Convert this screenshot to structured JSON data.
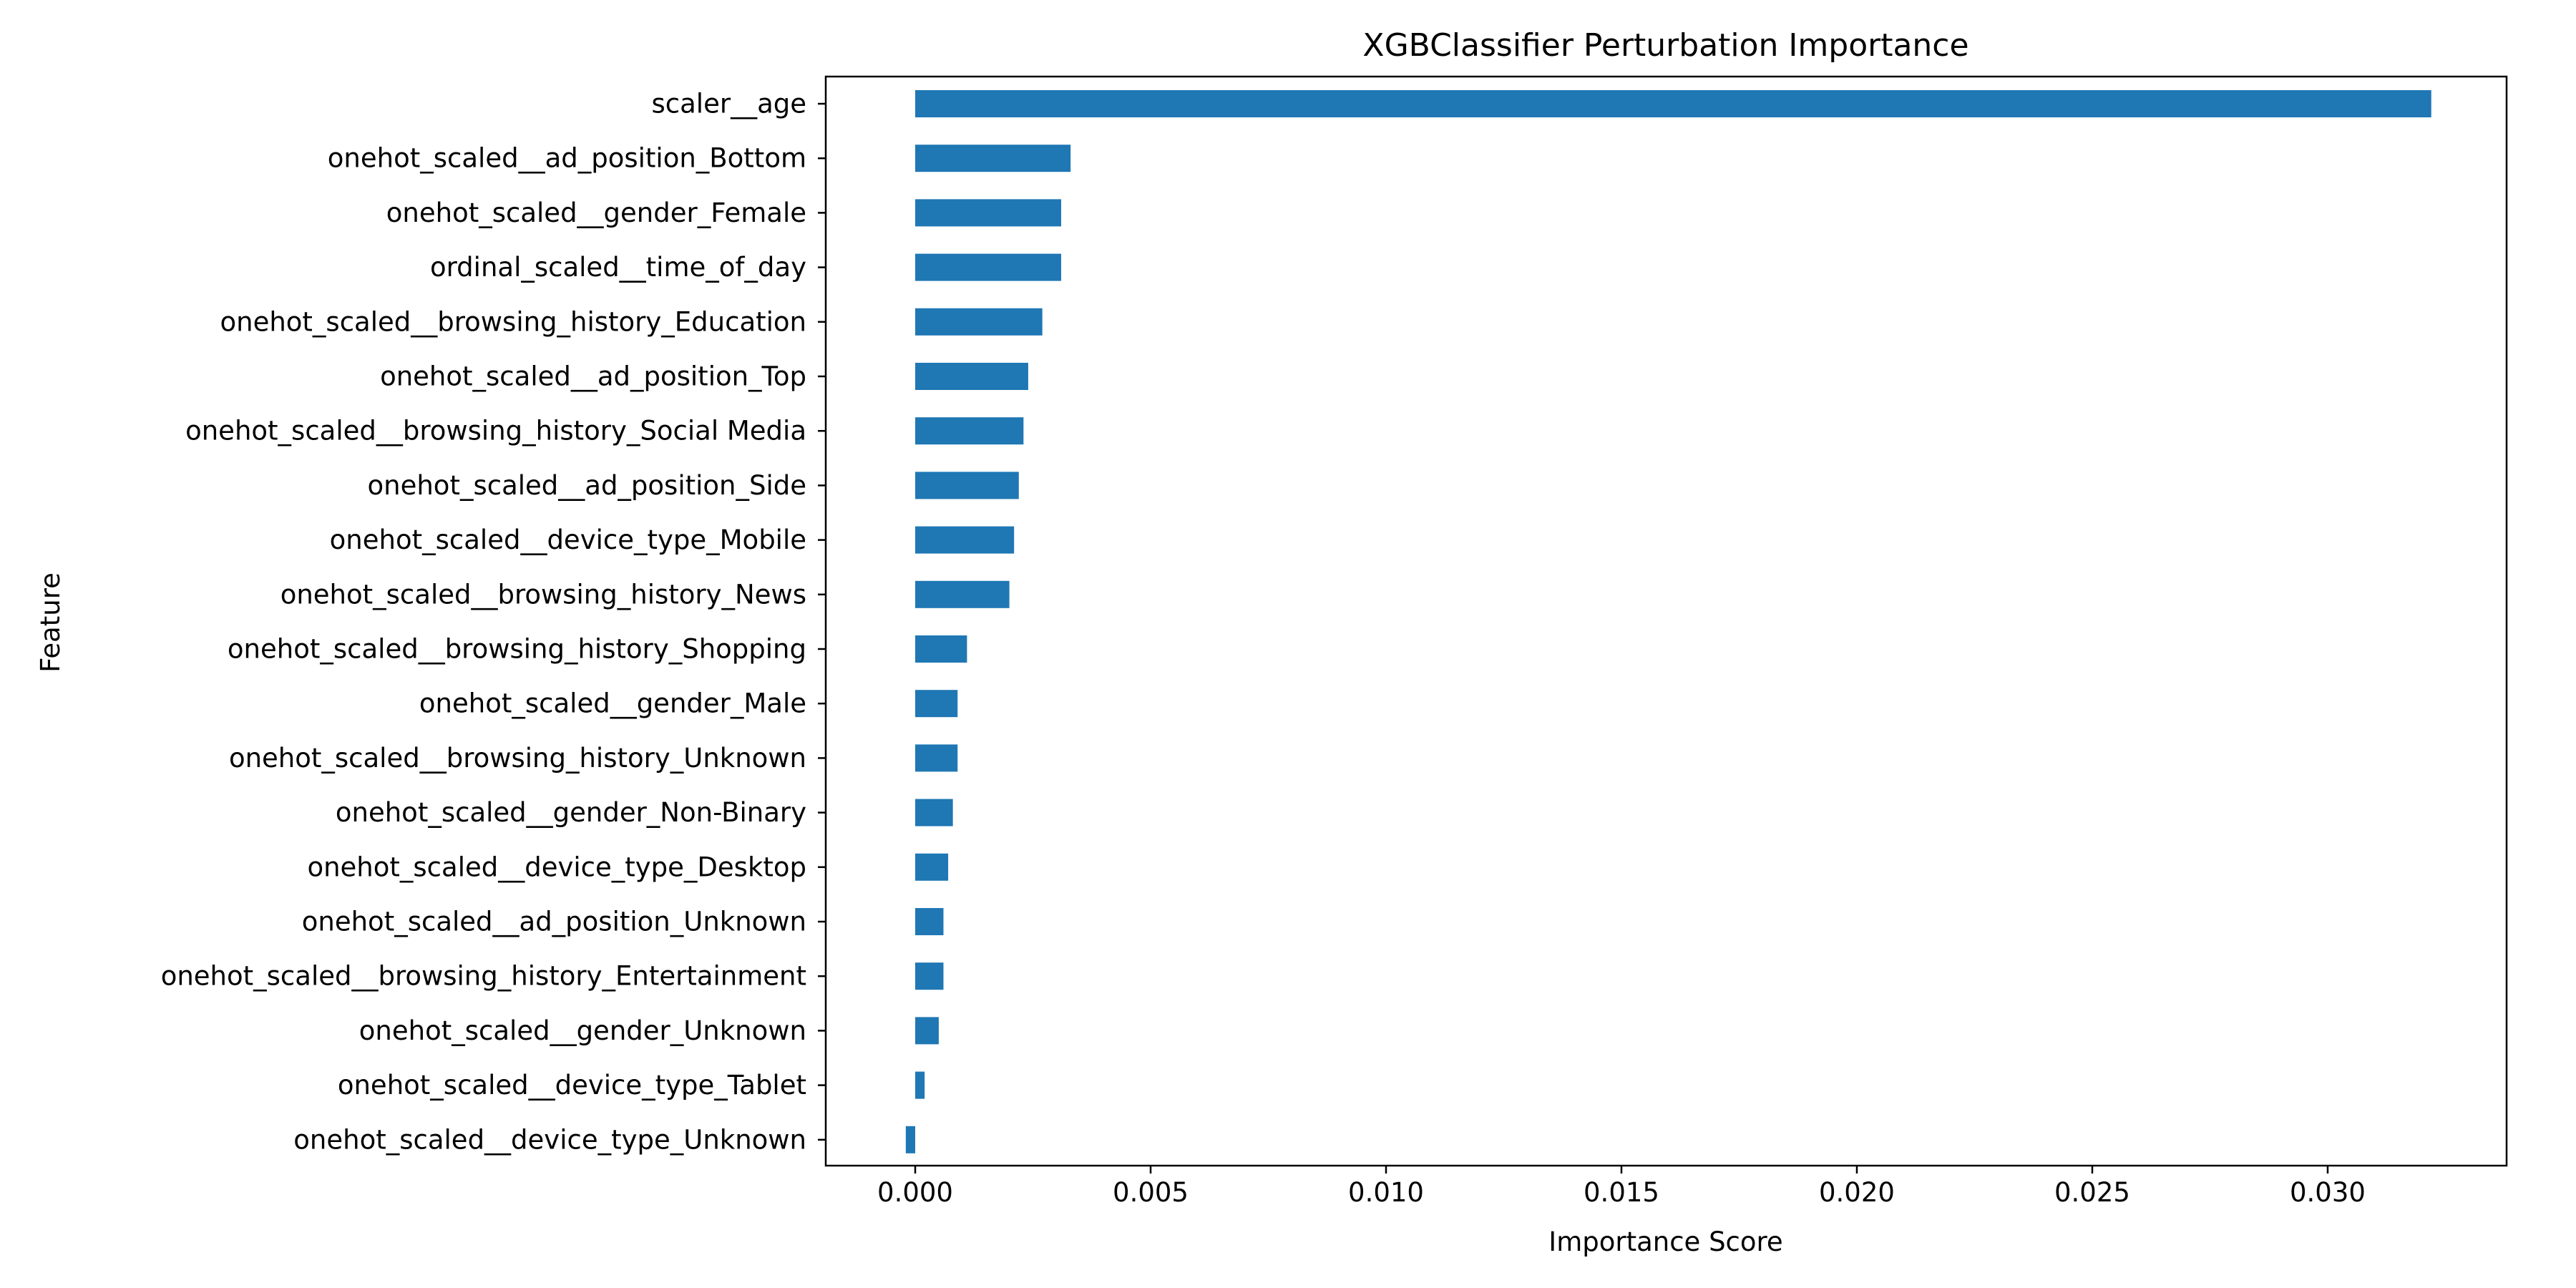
{
  "chart_data": {
    "type": "bar",
    "orientation": "horizontal",
    "title": "XGBClassifier Perturbation Importance",
    "xlabel": "Importance Score",
    "ylabel": "Feature",
    "xlim": [
      -0.0019,
      0.0338
    ],
    "x_ticks": [
      0.0,
      0.005,
      0.01,
      0.015,
      0.02,
      0.025,
      0.03
    ],
    "x_tick_labels": [
      "0.000",
      "0.005",
      "0.010",
      "0.015",
      "0.020",
      "0.025",
      "0.030"
    ],
    "grid": false,
    "legend": "none",
    "bar_color": "#1f77b4",
    "categories": [
      "scaler__age",
      "onehot_scaled__ad_position_Bottom",
      "onehot_scaled__gender_Female",
      "ordinal_scaled__time_of_day",
      "onehot_scaled__browsing_history_Education",
      "onehot_scaled__ad_position_Top",
      "onehot_scaled__browsing_history_Social Media",
      "onehot_scaled__ad_position_Side",
      "onehot_scaled__device_type_Mobile",
      "onehot_scaled__browsing_history_News",
      "onehot_scaled__browsing_history_Shopping",
      "onehot_scaled__gender_Male",
      "onehot_scaled__browsing_history_Unknown",
      "onehot_scaled__gender_Non-Binary",
      "onehot_scaled__device_type_Desktop",
      "onehot_scaled__ad_position_Unknown",
      "onehot_scaled__browsing_history_Entertainment",
      "onehot_scaled__gender_Unknown",
      "onehot_scaled__device_type_Tablet",
      "onehot_scaled__device_type_Unknown"
    ],
    "values": [
      0.0322,
      0.0033,
      0.0031,
      0.0031,
      0.0027,
      0.0024,
      0.0023,
      0.0022,
      0.0021,
      0.002,
      0.0011,
      0.0009,
      0.0009,
      0.0008,
      0.0007,
      0.0006,
      0.0006,
      0.0005,
      0.0002,
      -0.0002
    ]
  }
}
